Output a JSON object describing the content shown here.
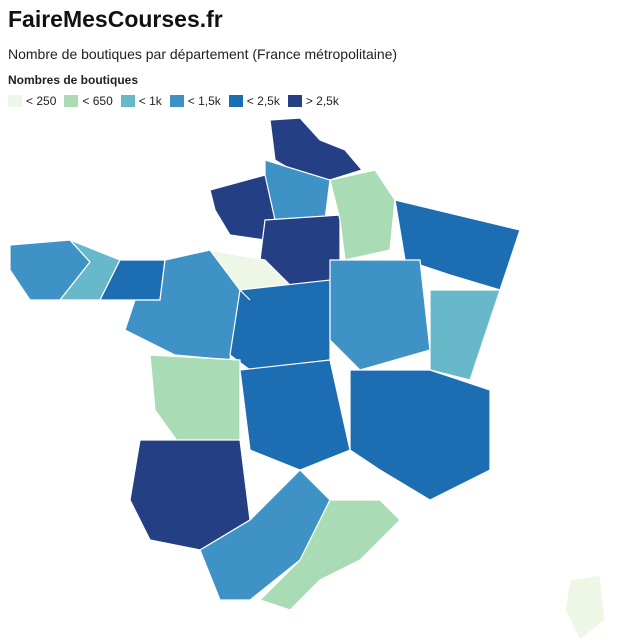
{
  "header": {
    "title": "FaireMesCourses.fr",
    "subtitle": "Nombre de boutiques par département (France métropolitaine)"
  },
  "legend": {
    "title": "Nombres de boutiques",
    "items": [
      {
        "label": "< 250",
        "color": "#eef7e6"
      },
      {
        "label": "< 650",
        "color": "#a9dcb4"
      },
      {
        "label": "< 1k",
        "color": "#67b8c9"
      },
      {
        "label": "< 1,5k",
        "color": "#3e92c5"
      },
      {
        "label": "< 2,5k",
        "color": "#1c6db1"
      },
      {
        "label": "> 2,5k",
        "color": "#243f84"
      }
    ]
  },
  "map": {
    "regions": [
      5,
      3,
      5,
      3,
      2,
      4,
      5,
      1,
      4,
      3,
      0,
      4,
      3,
      2,
      1,
      4,
      4,
      5,
      3,
      1,
      0
    ]
  }
}
